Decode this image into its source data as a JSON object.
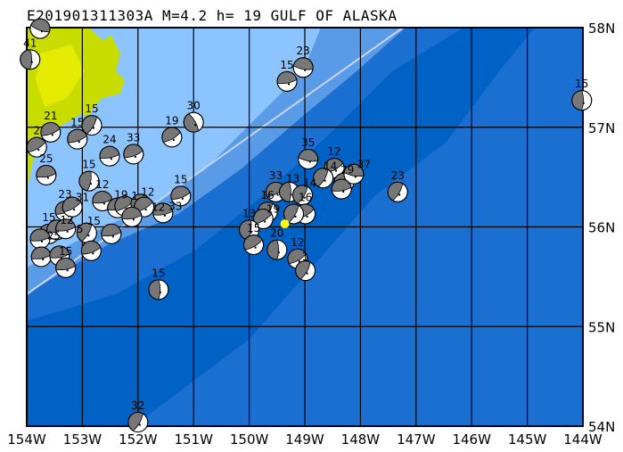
{
  "title": "E201901311303A M=4.2 h= 19 GULF OF ALASKA",
  "map": {
    "lon_range": [
      -154,
      -144
    ],
    "lat_range": [
      54,
      58
    ],
    "lon_ticks": [
      "154W",
      "153W",
      "152W",
      "151W",
      "150W",
      "149W",
      "148W",
      "147W",
      "146W",
      "145W",
      "144W"
    ],
    "lat_ticks": [
      "58N",
      "57N",
      "56N",
      "55N",
      "54N"
    ],
    "colors": {
      "land": "#c8dc00",
      "land_high": "#f0f000",
      "shelf": "#8cc4ff",
      "slope": "#5a9be8",
      "deep": "#1a6fd0",
      "trench": "#0062c4",
      "trench_line": "#c8d4ff",
      "event_star": "#ffff00"
    },
    "event_star": {
      "lon": -149.36,
      "lat": 56.03
    }
  },
  "events": [
    {
      "lon": -153.76,
      "lat": 57.99,
      "label": "",
      "rot": 200
    },
    {
      "lon": -153.94,
      "lat": 57.68,
      "label": "41",
      "rot": 90
    },
    {
      "lon": -153.57,
      "lat": 56.95,
      "label": "21",
      "rot": 160
    },
    {
      "lon": -153.09,
      "lat": 56.88,
      "label": "15",
      "rot": 160
    },
    {
      "lon": -152.83,
      "lat": 57.02,
      "label": "15",
      "rot": 120
    },
    {
      "lon": -153.82,
      "lat": 56.8,
      "label": "2",
      "rot": 150
    },
    {
      "lon": -152.51,
      "lat": 56.71,
      "label": "24",
      "rot": 170
    },
    {
      "lon": -152.08,
      "lat": 56.73,
      "label": "33",
      "rot": 160
    },
    {
      "lon": -151.39,
      "lat": 56.9,
      "label": "19",
      "rot": 150
    },
    {
      "lon": -151.0,
      "lat": 57.05,
      "label": "30",
      "rot": 60
    },
    {
      "lon": -153.65,
      "lat": 56.52,
      "label": "25",
      "rot": 170
    },
    {
      "lon": -152.88,
      "lat": 56.46,
      "label": "15",
      "rot": 100
    },
    {
      "lon": -152.64,
      "lat": 56.26,
      "label": "12",
      "rot": 170
    },
    {
      "lon": -152.37,
      "lat": 56.19,
      "label": "19",
      "rot": 170
    },
    {
      "lon": -152.24,
      "lat": 56.21,
      "label": "1",
      "rot": 150
    },
    {
      "lon": -151.95,
      "lat": 56.23,
      "label": "12",
      "rot": 170
    },
    {
      "lon": -151.89,
      "lat": 56.2,
      "label": "12",
      "rot": 150
    },
    {
      "lon": -151.55,
      "lat": 56.14,
      "label": "33",
      "rot": 170
    },
    {
      "lon": -151.23,
      "lat": 56.31,
      "label": "15",
      "rot": 160
    },
    {
      "lon": -153.31,
      "lat": 56.16,
      "label": "23",
      "rot": 160
    },
    {
      "lon": -153.18,
      "lat": 56.2,
      "label": "31",
      "rot": 150
    },
    {
      "lon": -153.6,
      "lat": 55.93,
      "label": "15",
      "rot": 170
    },
    {
      "lon": -153.46,
      "lat": 55.97,
      "label": "12",
      "rot": 160
    },
    {
      "lon": -153.3,
      "lat": 55.98,
      "label": "5",
      "rot": 170
    },
    {
      "lon": -153.76,
      "lat": 55.88,
      "label": "25",
      "rot": 170
    },
    {
      "lon": -153.74,
      "lat": 55.7,
      "label": "",
      "rot": 170
    },
    {
      "lon": -153.41,
      "lat": 55.71,
      "label": "",
      "rot": 170
    },
    {
      "lon": -153.3,
      "lat": 55.59,
      "label": "15",
      "rot": 170
    },
    {
      "lon": -152.92,
      "lat": 55.94,
      "label": "15",
      "rot": 120
    },
    {
      "lon": -152.84,
      "lat": 55.76,
      "label": "",
      "rot": 160
    },
    {
      "lon": -152.48,
      "lat": 55.93,
      "label": "",
      "rot": 170
    },
    {
      "lon": -152.11,
      "lat": 56.1,
      "label": "",
      "rot": 170
    },
    {
      "lon": -151.63,
      "lat": 55.37,
      "label": "15",
      "rot": 90
    },
    {
      "lon": -152.0,
      "lat": 54.04,
      "label": "32",
      "rot": 120
    },
    {
      "lon": -149.32,
      "lat": 57.46,
      "label": "15",
      "rot": 170
    },
    {
      "lon": -149.03,
      "lat": 57.6,
      "label": "23",
      "rot": 190
    },
    {
      "lon": -148.94,
      "lat": 56.68,
      "label": "35",
      "rot": 190
    },
    {
      "lon": -148.47,
      "lat": 56.59,
      "label": "12",
      "rot": 150
    },
    {
      "lon": -148.67,
      "lat": 56.49,
      "label": "14",
      "rot": 120
    },
    {
      "lon": -148.3,
      "lat": 56.44,
      "label": "29",
      "rot": 160
    },
    {
      "lon": -148.12,
      "lat": 56.53,
      "label": "37",
      "rot": 190
    },
    {
      "lon": -148.34,
      "lat": 56.38,
      "label": "",
      "rot": 170
    },
    {
      "lon": -147.33,
      "lat": 56.35,
      "label": "23",
      "rot": 120
    },
    {
      "lon": -149.52,
      "lat": 56.35,
      "label": "33",
      "rot": 150
    },
    {
      "lon": -149.28,
      "lat": 56.35,
      "label": "13",
      "rot": 90
    },
    {
      "lon": -149.04,
      "lat": 56.32,
      "label": "14",
      "rot": 120
    },
    {
      "lon": -148.99,
      "lat": 56.13,
      "label": "16",
      "rot": 150
    },
    {
      "lon": -149.2,
      "lat": 56.13,
      "label": "",
      "rot": 120
    },
    {
      "lon": -149.67,
      "lat": 56.15,
      "label": "16",
      "rot": 120
    },
    {
      "lon": -149.75,
      "lat": 56.08,
      "label": "19",
      "rot": 150
    },
    {
      "lon": -150.0,
      "lat": 55.97,
      "label": "13",
      "rot": 100
    },
    {
      "lon": -149.92,
      "lat": 55.82,
      "label": "15",
      "rot": 150
    },
    {
      "lon": -149.5,
      "lat": 55.77,
      "label": "20",
      "rot": 90
    },
    {
      "lon": -149.13,
      "lat": 55.68,
      "label": "12",
      "rot": 150
    },
    {
      "lon": -148.99,
      "lat": 55.56,
      "label": "1",
      "rot": 120
    },
    {
      "lon": -144.02,
      "lat": 57.27,
      "label": "15",
      "rot": 90
    }
  ]
}
